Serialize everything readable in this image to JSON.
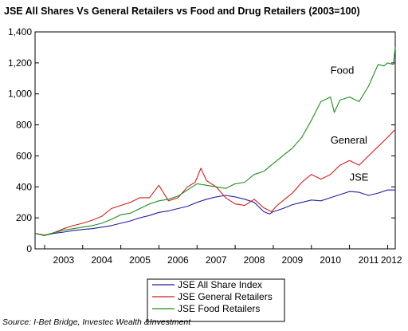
{
  "chart_data": {
    "type": "line",
    "title": "JSE All  Shares Vs General Retailers vs Food  and Drug Retailers (2003=100)",
    "xlabel": "",
    "ylabel": "",
    "x_ticks": [
      "2003",
      "2004",
      "2005",
      "2006",
      "2007",
      "2008",
      "2009",
      "2010",
      "2011",
      "2012"
    ],
    "x_range": [
      2002.75,
      2012.2
    ],
    "y_ticks": [
      "0",
      "200",
      "400",
      "600",
      "800",
      "1,000",
      "1,200",
      "1,400"
    ],
    "ylim": [
      0,
      1400
    ],
    "grid": false,
    "legend_position": "bottom",
    "annotations": [
      {
        "text": "Food",
        "series": "JSE Food Retailers"
      },
      {
        "text": "General",
        "series": "JSE General Retailers"
      },
      {
        "text": "JSE",
        "series": "JSE All Share Index"
      }
    ],
    "source": "Source: I-Bet Bridge, Investec Wealth &Investment",
    "series": [
      {
        "name": "JSE All Share Index",
        "color": "#1f1f9c",
        "x": [
          2002.75,
          2003.0,
          2003.25,
          2003.5,
          2003.75,
          2004.0,
          2004.25,
          2004.5,
          2004.75,
          2005.0,
          2005.25,
          2005.5,
          2005.75,
          2006.0,
          2006.25,
          2006.5,
          2006.75,
          2007.0,
          2007.25,
          2007.5,
          2007.75,
          2008.0,
          2008.25,
          2008.5,
          2008.75,
          2008.9,
          2009.0,
          2009.25,
          2009.5,
          2009.75,
          2010.0,
          2010.25,
          2010.5,
          2010.75,
          2011.0,
          2011.25,
          2011.5,
          2011.75,
          2012.0,
          2012.2
        ],
        "y": [
          100,
          88,
          100,
          108,
          118,
          125,
          130,
          140,
          150,
          165,
          180,
          200,
          215,
          235,
          245,
          260,
          275,
          300,
          320,
          335,
          345,
          335,
          320,
          300,
          240,
          225,
          240,
          260,
          285,
          300,
          315,
          310,
          330,
          350,
          370,
          365,
          345,
          360,
          380,
          380
        ]
      },
      {
        "name": "JSE General Retailers",
        "color": "#d11f1f",
        "x": [
          2002.75,
          2003.0,
          2003.25,
          2003.5,
          2003.75,
          2004.0,
          2004.25,
          2004.5,
          2004.75,
          2005.0,
          2005.25,
          2005.5,
          2005.75,
          2006.0,
          2006.25,
          2006.5,
          2006.75,
          2006.95,
          2007.1,
          2007.25,
          2007.5,
          2007.75,
          2008.0,
          2008.25,
          2008.5,
          2008.75,
          2008.95,
          2009.1,
          2009.25,
          2009.5,
          2009.75,
          2010.0,
          2010.25,
          2010.5,
          2010.75,
          2011.0,
          2011.25,
          2011.5,
          2011.75,
          2012.0,
          2012.2
        ],
        "y": [
          100,
          85,
          105,
          130,
          150,
          165,
          185,
          210,
          260,
          280,
          300,
          330,
          330,
          410,
          310,
          330,
          400,
          430,
          520,
          440,
          400,
          330,
          290,
          280,
          320,
          265,
          240,
          280,
          310,
          360,
          430,
          480,
          450,
          480,
          540,
          570,
          540,
          600,
          660,
          720,
          770
        ]
      },
      {
        "name": "JSE Food Retailers",
        "color": "#1f8c1f",
        "x": [
          2002.75,
          2003.0,
          2003.25,
          2003.5,
          2003.75,
          2004.0,
          2004.25,
          2004.5,
          2004.75,
          2005.0,
          2005.25,
          2005.5,
          2005.75,
          2006.0,
          2006.25,
          2006.5,
          2006.75,
          2007.0,
          2007.25,
          2007.5,
          2007.75,
          2008.0,
          2008.25,
          2008.5,
          2008.75,
          2009.0,
          2009.25,
          2009.5,
          2009.75,
          2010.0,
          2010.25,
          2010.5,
          2010.6,
          2010.75,
          2011.0,
          2011.25,
          2011.5,
          2011.75,
          2011.9,
          2012.0,
          2012.15,
          2012.2
        ],
        "y": [
          100,
          88,
          105,
          120,
          130,
          140,
          150,
          165,
          190,
          220,
          230,
          260,
          290,
          310,
          320,
          340,
          380,
          420,
          410,
          400,
          390,
          420,
          430,
          480,
          500,
          550,
          600,
          650,
          720,
          830,
          950,
          980,
          880,
          960,
          980,
          950,
          1050,
          1190,
          1180,
          1200,
          1190,
          1300
        ]
      }
    ]
  }
}
